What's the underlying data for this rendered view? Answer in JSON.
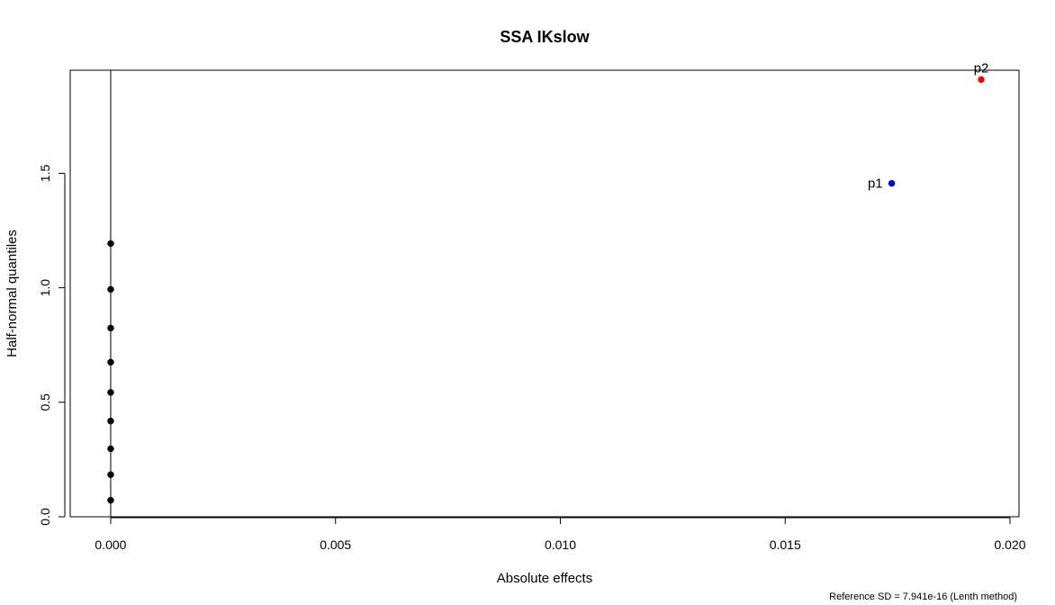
{
  "chart_data": {
    "type": "scatter",
    "title": "SSA IKslow",
    "xlabel": "Absolute effects",
    "ylabel": "Half-normal quantiles",
    "xlim": [
      -0.0009,
      0.0202
    ],
    "ylim": [
      0.0,
      1.95
    ],
    "xticks": [
      0.0,
      0.005,
      0.01,
      0.015,
      0.02
    ],
    "xtick_labels": [
      "0.000",
      "0.005",
      "0.010",
      "0.015",
      "0.020"
    ],
    "yticks": [
      0.0,
      0.5,
      1.0,
      1.5
    ],
    "ytick_labels": [
      "0.0",
      "0.5",
      "1.0",
      "1.5"
    ],
    "grid": false,
    "reference_line": {
      "x": 0.0
    },
    "points": [
      {
        "x": 0.0,
        "y": 0.072,
        "color": "#000000",
        "label": ""
      },
      {
        "x": 0.0,
        "y": 0.184,
        "color": "#000000",
        "label": ""
      },
      {
        "x": 0.0,
        "y": 0.297,
        "color": "#000000",
        "label": ""
      },
      {
        "x": 0.0,
        "y": 0.418,
        "color": "#000000",
        "label": ""
      },
      {
        "x": 0.0,
        "y": 0.543,
        "color": "#000000",
        "label": ""
      },
      {
        "x": 0.0,
        "y": 0.675,
        "color": "#000000",
        "label": ""
      },
      {
        "x": 0.0,
        "y": 0.824,
        "color": "#000000",
        "label": ""
      },
      {
        "x": 0.0,
        "y": 0.993,
        "color": "#000000",
        "label": ""
      },
      {
        "x": 0.0,
        "y": 1.193,
        "color": "#000000",
        "label": ""
      },
      {
        "x": 0.01737,
        "y": 1.456,
        "color": "#0000cc",
        "label": "p1",
        "label_pos": "left"
      },
      {
        "x": 0.01936,
        "y": 1.909,
        "color": "#ff0000",
        "label": "p2",
        "label_pos": "top"
      }
    ],
    "footnote": "Reference SD = 7.941e-16 (Lenth method)"
  }
}
